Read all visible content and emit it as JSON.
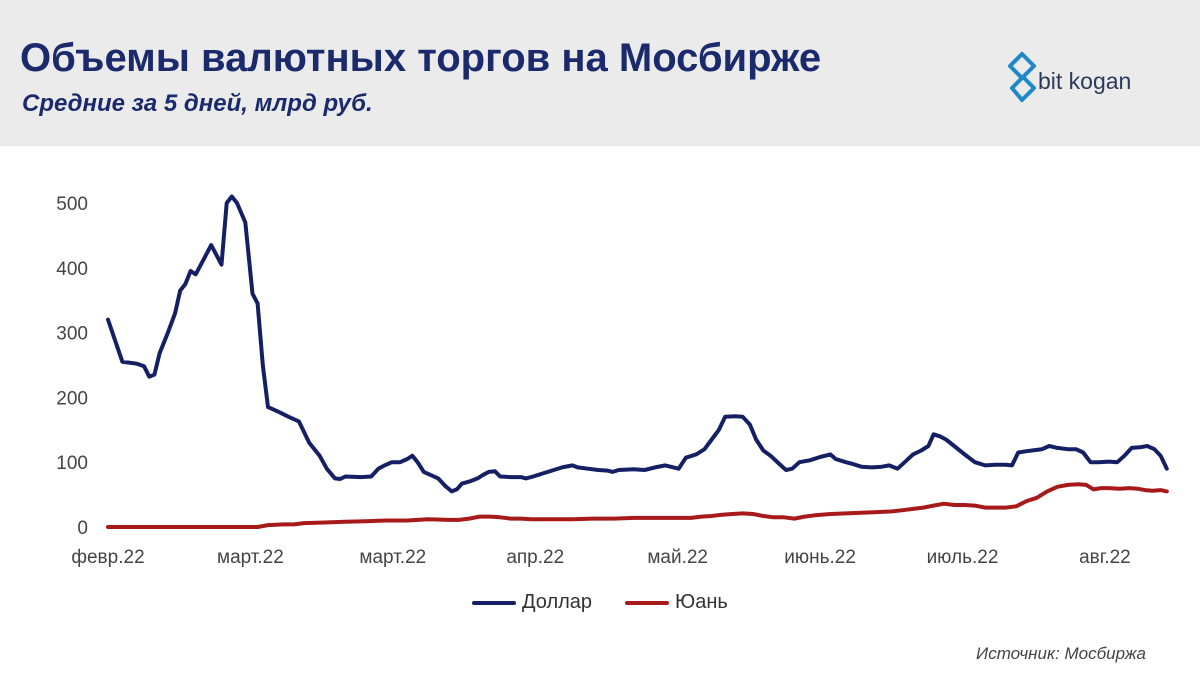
{
  "header": {
    "title": "Объемы валютных торгов на Мосбирже",
    "subtitle": "Средние за 5 дней, млрд руб.",
    "brand": {
      "name": "bit kogan",
      "logo_icon": "bitkogan-logo-icon",
      "color": "#1e88c8"
    }
  },
  "source": "Источник: Мосбиржа",
  "colors": {
    "title": "#1a2a6c",
    "dollar": "#142063",
    "yuan": "#a81a1a",
    "header_bg": "#ebebeb"
  },
  "chart_data": {
    "type": "line",
    "title": "Объемы валютных торгов на Мосбирже",
    "subtitle": "Средние за 5 дней, млрд руб.",
    "ylim": [
      0,
      500
    ],
    "yticks": [
      0,
      100,
      200,
      300,
      400,
      500
    ],
    "xlim": [
      0,
      1000
    ],
    "x_tick_labels": [
      "февр.22",
      "март.22",
      "март.22",
      "апр.22",
      "май.22",
      "июнь.22",
      "июль.22",
      "авг.22"
    ],
    "x_tick_positions": [
      0,
      138,
      276,
      414,
      552,
      690,
      828,
      966
    ],
    "grid": false,
    "legend": "bottom-center",
    "series": [
      {
        "name": "Доллар",
        "color": "#142063",
        "points": [
          [
            0,
            320
          ],
          [
            14,
            255
          ],
          [
            28,
            252
          ],
          [
            35,
            248
          ],
          [
            40,
            232
          ],
          [
            45,
            235
          ],
          [
            50,
            268
          ],
          [
            58,
            300
          ],
          [
            65,
            330
          ],
          [
            70,
            365
          ],
          [
            75,
            375
          ],
          [
            80,
            395
          ],
          [
            85,
            390
          ],
          [
            90,
            405
          ],
          [
            100,
            435
          ],
          [
            110,
            405
          ],
          [
            115,
            500
          ],
          [
            120,
            510
          ],
          [
            125,
            500
          ],
          [
            133,
            470
          ],
          [
            140,
            360
          ],
          [
            145,
            345
          ],
          [
            150,
            250
          ],
          [
            155,
            185
          ],
          [
            165,
            178
          ],
          [
            175,
            170
          ],
          [
            185,
            163
          ],
          [
            195,
            130
          ],
          [
            205,
            110
          ],
          [
            212,
            90
          ],
          [
            220,
            75
          ],
          [
            225,
            74
          ],
          [
            230,
            78
          ],
          [
            245,
            77
          ],
          [
            255,
            78
          ],
          [
            262,
            90
          ],
          [
            268,
            95
          ],
          [
            275,
            100
          ],
          [
            283,
            100
          ],
          [
            290,
            105
          ],
          [
            295,
            110
          ],
          [
            300,
            100
          ],
          [
            306,
            85
          ],
          [
            313,
            80
          ],
          [
            320,
            75
          ],
          [
            327,
            63
          ],
          [
            333,
            55
          ],
          [
            338,
            58
          ],
          [
            343,
            67
          ],
          [
            350,
            70
          ],
          [
            358,
            75
          ],
          [
            363,
            80
          ],
          [
            369,
            85
          ],
          [
            375,
            86
          ],
          [
            380,
            78
          ],
          [
            390,
            77
          ],
          [
            400,
            77
          ],
          [
            405,
            75
          ],
          [
            412,
            78
          ],
          [
            420,
            82
          ],
          [
            430,
            87
          ],
          [
            440,
            92
          ],
          [
            450,
            95
          ],
          [
            455,
            92
          ],
          [
            465,
            90
          ],
          [
            475,
            88
          ],
          [
            484,
            87
          ],
          [
            489,
            85
          ],
          [
            495,
            88
          ],
          [
            510,
            89
          ],
          [
            520,
            88
          ],
          [
            530,
            92
          ],
          [
            540,
            95
          ],
          [
            548,
            92
          ],
          [
            553,
            90
          ],
          [
            560,
            107
          ],
          [
            570,
            112
          ],
          [
            578,
            120
          ],
          [
            585,
            135
          ],
          [
            592,
            150
          ],
          [
            598,
            170
          ],
          [
            608,
            171
          ],
          [
            615,
            170
          ],
          [
            622,
            158
          ],
          [
            628,
            135
          ],
          [
            635,
            118
          ],
          [
            642,
            110
          ],
          [
            650,
            98
          ],
          [
            657,
            88
          ],
          [
            663,
            90
          ],
          [
            670,
            100
          ],
          [
            680,
            103
          ],
          [
            690,
            108
          ],
          [
            700,
            112
          ],
          [
            705,
            105
          ],
          [
            715,
            100
          ],
          [
            722,
            97
          ],
          [
            730,
            93
          ],
          [
            740,
            92
          ],
          [
            750,
            93
          ],
          [
            757,
            95
          ],
          [
            765,
            90
          ],
          [
            772,
            100
          ],
          [
            780,
            112
          ],
          [
            788,
            118
          ],
          [
            795,
            125
          ],
          [
            800,
            143
          ],
          [
            806,
            140
          ],
          [
            812,
            135
          ],
          [
            820,
            125
          ],
          [
            830,
            112
          ],
          [
            840,
            100
          ],
          [
            850,
            95
          ],
          [
            860,
            96
          ],
          [
            870,
            96
          ],
          [
            876,
            95
          ],
          [
            882,
            115
          ],
          [
            890,
            117
          ],
          [
            900,
            119
          ],
          [
            905,
            120
          ],
          [
            912,
            125
          ],
          [
            920,
            122
          ],
          [
            930,
            120
          ],
          [
            938,
            120
          ],
          [
            945,
            115
          ],
          [
            952,
            100
          ],
          [
            960,
            100
          ],
          [
            970,
            101
          ],
          [
            978,
            100
          ],
          [
            985,
            110
          ],
          [
            992,
            122
          ],
          [
            1000,
            123
          ],
          [
            1007,
            125
          ],
          [
            1014,
            120
          ],
          [
            1020,
            110
          ],
          [
            1026,
            90
          ]
        ]
      },
      {
        "name": "Юань",
        "color": "#a81a1a",
        "points": [
          [
            0,
            0
          ],
          [
            50,
            0
          ],
          [
            100,
            0
          ],
          [
            130,
            0
          ],
          [
            145,
            0
          ],
          [
            155,
            3
          ],
          [
            170,
            4
          ],
          [
            180,
            4
          ],
          [
            190,
            6
          ],
          [
            210,
            7
          ],
          [
            230,
            8
          ],
          [
            250,
            9
          ],
          [
            270,
            10
          ],
          [
            290,
            10
          ],
          [
            310,
            12
          ],
          [
            330,
            11
          ],
          [
            340,
            11
          ],
          [
            350,
            13
          ],
          [
            360,
            16
          ],
          [
            370,
            16
          ],
          [
            380,
            15
          ],
          [
            390,
            13
          ],
          [
            400,
            13
          ],
          [
            410,
            12
          ],
          [
            430,
            12
          ],
          [
            450,
            12
          ],
          [
            470,
            13
          ],
          [
            490,
            13
          ],
          [
            510,
            14
          ],
          [
            530,
            14
          ],
          [
            550,
            14
          ],
          [
            565,
            14
          ],
          [
            575,
            16
          ],
          [
            585,
            17
          ],
          [
            595,
            19
          ],
          [
            605,
            20
          ],
          [
            615,
            21
          ],
          [
            625,
            20
          ],
          [
            635,
            17
          ],
          [
            645,
            15
          ],
          [
            655,
            15
          ],
          [
            665,
            13
          ],
          [
            675,
            16
          ],
          [
            685,
            18
          ],
          [
            700,
            20
          ],
          [
            715,
            21
          ],
          [
            730,
            22
          ],
          [
            745,
            23
          ],
          [
            760,
            24
          ],
          [
            770,
            26
          ],
          [
            780,
            28
          ],
          [
            790,
            30
          ],
          [
            800,
            33
          ],
          [
            810,
            36
          ],
          [
            820,
            34
          ],
          [
            830,
            34
          ],
          [
            840,
            33
          ],
          [
            850,
            30
          ],
          [
            860,
            30
          ],
          [
            870,
            30
          ],
          [
            880,
            32
          ],
          [
            890,
            40
          ],
          [
            900,
            45
          ],
          [
            910,
            55
          ],
          [
            920,
            62
          ],
          [
            930,
            65
          ],
          [
            940,
            66
          ],
          [
            948,
            65
          ],
          [
            955,
            58
          ],
          [
            962,
            60
          ],
          [
            970,
            60
          ],
          [
            980,
            59
          ],
          [
            990,
            60
          ],
          [
            998,
            59
          ],
          [
            1005,
            57
          ],
          [
            1012,
            56
          ],
          [
            1020,
            57
          ],
          [
            1026,
            55
          ]
        ]
      }
    ]
  }
}
